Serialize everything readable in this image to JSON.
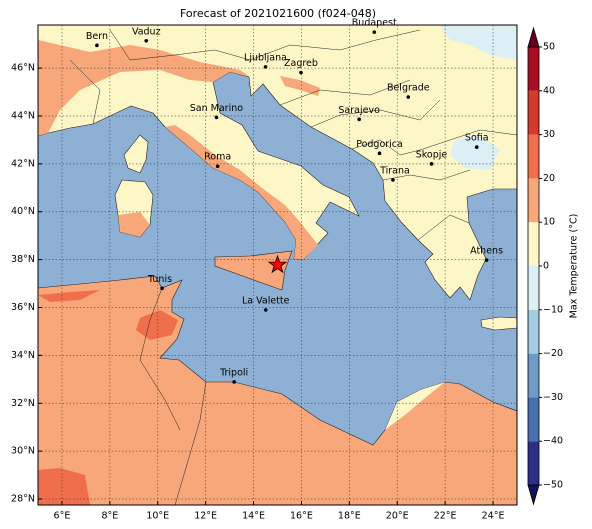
{
  "title": "Forecast of 2021021600 (f024-048)",
  "map": {
    "xlim": [
      5,
      25
    ],
    "ylim": [
      27.75,
      47.8
    ],
    "grid": true,
    "xticks": [
      {
        "value": 6,
        "label": "6°E"
      },
      {
        "value": 8,
        "label": "8°E"
      },
      {
        "value": 10,
        "label": "10°E"
      },
      {
        "value": 12,
        "label": "12°E"
      },
      {
        "value": 14,
        "label": "14°E"
      },
      {
        "value": 16,
        "label": "16°E"
      },
      {
        "value": 18,
        "label": "18°E"
      },
      {
        "value": 20,
        "label": "20°E"
      },
      {
        "value": 22,
        "label": "22°E"
      },
      {
        "value": 24,
        "label": "24°E"
      }
    ],
    "yticks": [
      {
        "value": 28,
        "label": "28°N"
      },
      {
        "value": 30,
        "label": "30°N"
      },
      {
        "value": 32,
        "label": "32°N"
      },
      {
        "value": 34,
        "label": "34°N"
      },
      {
        "value": 36,
        "label": "36°N"
      },
      {
        "value": 38,
        "label": "38°N"
      },
      {
        "value": 40,
        "label": "40°N"
      },
      {
        "value": 42,
        "label": "42°N"
      },
      {
        "value": 44,
        "label": "44°N"
      },
      {
        "value": 46,
        "label": "46°N"
      }
    ]
  },
  "cities": [
    {
      "name": "Bern",
      "lon": 7.46,
      "lat": 46.95
    },
    {
      "name": "Vaduz",
      "lon": 9.52,
      "lat": 47.14
    },
    {
      "name": "Budapest",
      "lon": 19.04,
      "lat": 47.5
    },
    {
      "name": "Ljubljana",
      "lon": 14.5,
      "lat": 46.05
    },
    {
      "name": "Zagreb",
      "lon": 15.98,
      "lat": 45.81
    },
    {
      "name": "Belgrade",
      "lon": 20.46,
      "lat": 44.79
    },
    {
      "name": "San Marino",
      "lon": 12.45,
      "lat": 43.94
    },
    {
      "name": "Sarajevo",
      "lon": 18.41,
      "lat": 43.86
    },
    {
      "name": "Roma",
      "lon": 12.5,
      "lat": 41.9
    },
    {
      "name": "Podgorica",
      "lon": 19.26,
      "lat": 42.44
    },
    {
      "name": "Skopje",
      "lon": 21.43,
      "lat": 42.0
    },
    {
      "name": "Sofia",
      "lon": 23.32,
      "lat": 42.7
    },
    {
      "name": "Tirana",
      "lon": 19.82,
      "lat": 41.33
    },
    {
      "name": "Athens",
      "lon": 23.73,
      "lat": 37.98
    },
    {
      "name": "Tunis",
      "lon": 10.18,
      "lat": 36.8
    },
    {
      "name": "La Valette",
      "lon": 14.51,
      "lat": 35.9
    },
    {
      "name": "Tripoli",
      "lon": 13.19,
      "lat": 32.89
    }
  ],
  "marker": {
    "lon": 15.0,
    "lat": 37.78,
    "color": "#ff0000"
  },
  "colorbar": {
    "label": "Max Temperature (°C)",
    "ticks": [
      {
        "value": -50,
        "label": "−50"
      },
      {
        "value": -40,
        "label": "−40"
      },
      {
        "value": -30,
        "label": "−30"
      },
      {
        "value": -20,
        "label": "−20"
      },
      {
        "value": -10,
        "label": "−10"
      },
      0,
      10,
      20,
      30,
      40,
      50
    ],
    "colors": [
      "#2b2f8a",
      "#4a6fae",
      "#6f9bc8",
      "#a7cbe1",
      "#dceff5",
      "#fdf6c6",
      "#f7a77a",
      "#ef6e4b",
      "#d33a2c",
      "#a80d26"
    ],
    "under_color": "#14145a",
    "over_color": "#67001f"
  }
}
